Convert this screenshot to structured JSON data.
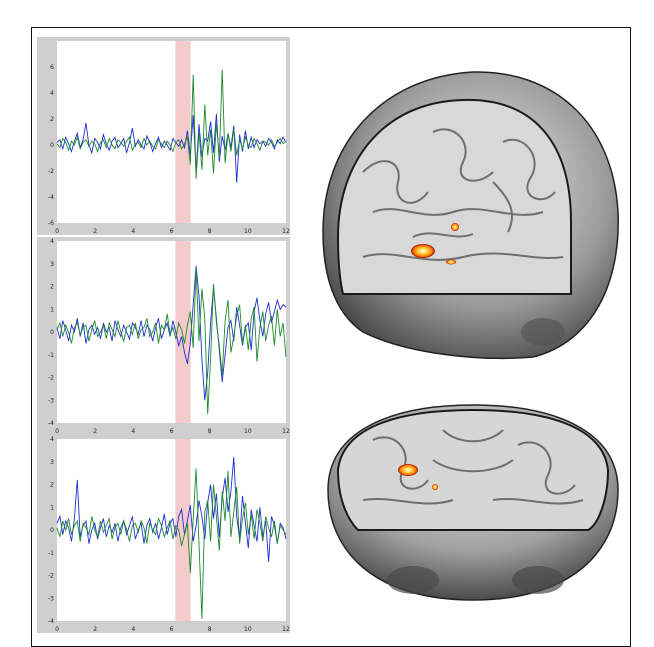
{
  "chart_data": [
    {
      "type": "line",
      "xlim": [
        0,
        12
      ],
      "ylim": [
        -6,
        8
      ],
      "x_ticks": [
        "0",
        "2",
        "4",
        "6",
        "8",
        "10",
        "12"
      ],
      "y_ticks": [
        "-6",
        "-4",
        "-2",
        "0",
        "2",
        "4",
        "6"
      ],
      "highlight_x": [
        6.2,
        7.0
      ],
      "series": [
        {
          "color": "#1f2fd6",
          "values": [
            0.2,
            0.4,
            -0.3,
            0.6,
            0.1,
            -0.5,
            0.3,
            0.9,
            -0.2,
            0.4,
            1.7,
            0.0,
            -0.6,
            0.5,
            0.2,
            -0.3,
            0.8,
            0.1,
            -0.4,
            0.3,
            0.6,
            -0.2,
            0.1,
            0.5,
            -0.6,
            0.2,
            1.3,
            -0.1,
            0.4,
            0.0,
            -0.3,
            0.7,
            0.2,
            -0.5,
            0.1,
            0.6,
            -0.2,
            0.3,
            0.0,
            -0.4,
            0.5,
            0.2,
            -0.1,
            0.4,
            -0.2,
            1.1,
            -0.8,
            2.3,
            -2.0,
            1.6,
            -0.9,
            0.5,
            0.3,
            1.8,
            -0.6,
            2.4,
            -1.3,
            0.7,
            -0.4,
            0.9,
            -0.2,
            1.5,
            -2.9,
            0.8,
            -0.5,
            1.1,
            -0.3,
            0.6,
            -0.2,
            0.4,
            0.1,
            0.3,
            -0.1,
            0.5,
            0.2,
            -0.3,
            0.4,
            0.1,
            0.6,
            0.2
          ]
        },
        {
          "color": "#1e8a2e",
          "values": [
            0.1,
            -0.2,
            0.5,
            0.2,
            -0.4,
            0.3,
            0.0,
            0.6,
            -0.3,
            0.2,
            0.4,
            -0.1,
            0.3,
            0.1,
            -0.5,
            0.2,
            0.4,
            -0.2,
            0.5,
            0.0,
            -0.3,
            0.4,
            0.2,
            -0.1,
            0.3,
            0.6,
            -0.4,
            0.1,
            0.2,
            -0.2,
            0.5,
            0.0,
            0.3,
            -0.1,
            -0.3,
            0.4,
            0.1,
            -0.2,
            0.3,
            0.0,
            -0.5,
            0.2,
            0.4,
            -0.3,
            0.1,
            0.6,
            -1.5,
            5.4,
            -2.6,
            1.0,
            -1.9,
            3.1,
            -0.8,
            1.2,
            -2.2,
            1.7,
            -1.0,
            5.8,
            -1.4,
            0.9,
            -0.5,
            1.2,
            -0.8,
            0.4,
            -0.3,
            0.6,
            0.0,
            -0.2,
            0.5,
            0.1,
            -0.4,
            0.3,
            0.2,
            0.0,
            0.4,
            -0.1,
            0.2,
            0.5,
            0.1,
            0.3
          ]
        }
      ]
    },
    {
      "type": "line",
      "xlim": [
        0,
        12
      ],
      "ylim": [
        -4,
        4
      ],
      "x_ticks": [
        "0",
        "2",
        "4",
        "6",
        "8",
        "10",
        "12"
      ],
      "y_ticks": [
        "-4",
        "-3",
        "-2",
        "-1",
        "0",
        "1",
        "2",
        "3",
        "4"
      ],
      "highlight_x": [
        6.2,
        7.0
      ],
      "series": [
        {
          "color": "#1f2fd6",
          "values": [
            0.2,
            -0.3,
            0.5,
            0.1,
            -0.4,
            0.3,
            0.0,
            0.6,
            -0.2,
            0.4,
            -0.5,
            0.1,
            0.3,
            -0.1,
            0.2,
            -0.3,
            0.4,
            0.0,
            0.2,
            -0.4,
            0.5,
            0.1,
            -0.2,
            0.3,
            0.0,
            -0.3,
            0.4,
            0.2,
            -0.1,
            0.5,
            -0.2,
            0.3,
            0.1,
            -0.4,
            0.2,
            0.6,
            -0.3,
            0.1,
            0.4,
            -0.2,
            0.5,
            0.0,
            -0.6,
            -0.2,
            -0.9,
            -1.4,
            -0.5,
            1.2,
            2.9,
            1.6,
            -1.2,
            -3.0,
            -1.8,
            0.4,
            2.0,
            0.6,
            -0.8,
            -2.2,
            -1.0,
            0.2,
            0.5,
            -0.4,
            1.1,
            0.3,
            -0.6,
            0.2,
            0.4,
            -0.8,
            0.9,
            1.5,
            0.5,
            -0.2,
            0.8,
            1.3,
            0.4,
            0.9,
            1.4,
            1.0,
            1.2,
            1.1
          ]
        },
        {
          "color": "#1e8a2e",
          "values": [
            0.1,
            0.4,
            -0.2,
            0.3,
            0.0,
            -0.5,
            0.2,
            0.4,
            -0.1,
            0.2,
            0.3,
            -0.4,
            0.1,
            0.5,
            -0.2,
            0.0,
            0.3,
            -0.3,
            0.4,
            0.1,
            -0.2,
            0.5,
            0.0,
            -0.4,
            0.2,
            0.3,
            -0.1,
            0.4,
            -0.3,
            0.1,
            0.2,
            0.6,
            -0.2,
            0.0,
            0.4,
            -0.5,
            0.3,
            0.1,
            0.8,
            -0.1,
            0.2,
            -0.3,
            0.4,
            0.1,
            -0.5,
            0.3,
            0.9,
            -0.7,
            2.8,
            -0.4,
            1.9,
            0.6,
            -3.6,
            -1.2,
            2.1,
            0.4,
            -0.6,
            -1.9,
            0.5,
            1.4,
            -0.9,
            -0.2,
            0.7,
            1.2,
            -0.5,
            0.3,
            -0.8,
            0.6,
            1.1,
            -1.3,
            0.2,
            0.9,
            -0.4,
            0.3,
            0.7,
            -0.6,
            1.0,
            -0.2,
            0.4,
            -1.1
          ]
        }
      ]
    },
    {
      "type": "line",
      "xlim": [
        0,
        12
      ],
      "ylim": [
        -4,
        4
      ],
      "x_ticks": [
        "0",
        "2",
        "4",
        "6",
        "8",
        "10",
        "12"
      ],
      "y_ticks": [
        "-4",
        "-3",
        "-2",
        "-1",
        "0",
        "1",
        "2",
        "3",
        "4"
      ],
      "highlight_x": [
        6.2,
        7.0
      ],
      "series": [
        {
          "color": "#1f2fd6",
          "values": [
            0.3,
            0.6,
            -0.2,
            0.4,
            0.1,
            -0.5,
            0.5,
            2.2,
            -0.3,
            0.2,
            0.4,
            -0.6,
            0.0,
            0.3,
            -0.4,
            0.1,
            0.5,
            -0.3,
            0.2,
            -0.1,
            0.3,
            -0.5,
            0.1,
            0.4,
            -0.2,
            0.2,
            0.6,
            -0.4,
            0.0,
            0.3,
            -0.6,
            0.2,
            0.5,
            -0.1,
            0.3,
            -0.4,
            0.1,
            0.7,
            -0.2,
            0.3,
            0.5,
            -0.3,
            0.6,
            0.9,
            -0.2,
            0.4,
            1.1,
            -0.5,
            0.2,
            1.3,
            0.6,
            -0.4,
            1.2,
            2.0,
            0.5,
            1.6,
            -0.3,
            1.4,
            2.3,
            0.8,
            1.7,
            3.2,
            0.6,
            -0.4,
            1.5,
            0.3,
            -0.8,
            0.9,
            0.2,
            -0.5,
            1.0,
            -0.3,
            0.4,
            -1.4,
            0.6,
            0.2,
            -0.6,
            0.3,
            0.1,
            -0.4
          ]
        },
        {
          "color": "#1e8a2e",
          "values": [
            0.1,
            -0.3,
            0.4,
            0.0,
            0.5,
            -0.2,
            0.2,
            0.4,
            -0.5,
            0.3,
            0.1,
            -0.2,
            0.6,
            0.0,
            -0.3,
            0.4,
            -0.1,
            0.2,
            0.5,
            -0.4,
            0.1,
            0.3,
            -0.2,
            0.4,
            0.0,
            -0.5,
            0.2,
            0.3,
            -0.1,
            0.4,
            0.1,
            -0.6,
            0.3,
            0.0,
            -0.2,
            0.5,
            0.2,
            -0.3,
            0.1,
            0.4,
            -0.4,
            0.2,
            0.0,
            -0.7,
            -0.2,
            0.3,
            -1.9,
            0.5,
            2.7,
            -0.6,
            -3.9,
            0.8,
            1.3,
            -0.5,
            2.0,
            0.6,
            -0.9,
            1.7,
            0.4,
            2.6,
            -0.3,
            0.8,
            1.9,
            -0.6,
            0.5,
            1.2,
            -0.2,
            0.7,
            -0.4,
            0.9,
            0.3,
            -0.5,
            0.6,
            0.1,
            -0.3,
            0.4,
            -0.6,
            0.2,
            0.0,
            -0.2
          ]
        }
      ]
    }
  ],
  "brain_images": [
    {
      "name": "sagittal-mri-render",
      "activation_color": "#ff9a1a"
    },
    {
      "name": "axial-mri-render",
      "activation_color": "#ff9a1a"
    }
  ]
}
